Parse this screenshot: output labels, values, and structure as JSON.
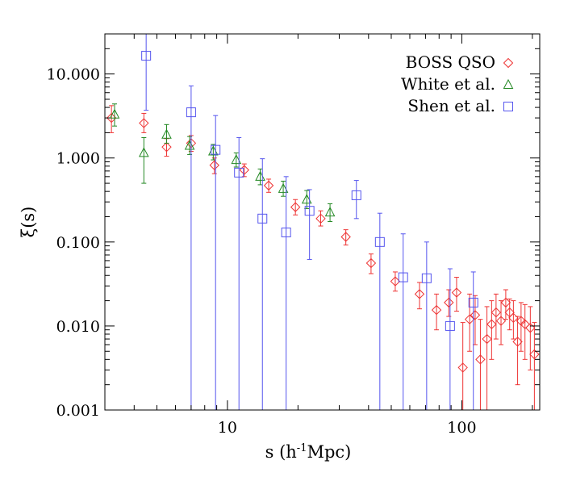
{
  "chart_data": {
    "type": "scatter",
    "xlabel": "s (h⁻¹Mpc)",
    "ylabel": "ξ(s)",
    "xscale": "log",
    "yscale": "log",
    "xlim": [
      3.0,
      215.0
    ],
    "ylim": [
      0.001,
      30.0
    ],
    "grid": false,
    "legend_position": "top-right",
    "x_ticks": [
      {
        "value": 10,
        "label": "10"
      },
      {
        "value": 100,
        "label": "100"
      }
    ],
    "y_ticks": [
      {
        "value": 0.001,
        "label": "0.001"
      },
      {
        "value": 0.01,
        "label": "0.010"
      },
      {
        "value": 0.1,
        "label": "0.100"
      },
      {
        "value": 1,
        "label": "1.000"
      },
      {
        "value": 10,
        "label": "10.000"
      }
    ],
    "series": [
      {
        "name": "BOSS QSO",
        "marker": "diamond",
        "color": "#ee3333",
        "points": [
          {
            "x": 3.2,
            "y": 3.0,
            "lo": 2.0,
            "hi": 4.2
          },
          {
            "x": 4.4,
            "y": 2.6,
            "lo": 2.0,
            "hi": 3.4
          },
          {
            "x": 5.5,
            "y": 1.35,
            "lo": 1.05,
            "hi": 1.7
          },
          {
            "x": 7.0,
            "y": 1.5,
            "lo": 1.2,
            "hi": 1.85
          },
          {
            "x": 8.8,
            "y": 0.82,
            "lo": 0.65,
            "hi": 1.0
          },
          {
            "x": 11.8,
            "y": 0.72,
            "lo": 0.6,
            "hi": 0.85
          },
          {
            "x": 15.0,
            "y": 0.47,
            "lo": 0.39,
            "hi": 0.56
          },
          {
            "x": 19.5,
            "y": 0.26,
            "lo": 0.21,
            "hi": 0.32
          },
          {
            "x": 25.0,
            "y": 0.19,
            "lo": 0.155,
            "hi": 0.235
          },
          {
            "x": 32.0,
            "y": 0.115,
            "lo": 0.092,
            "hi": 0.14
          },
          {
            "x": 41.0,
            "y": 0.056,
            "lo": 0.042,
            "hi": 0.072
          },
          {
            "x": 52.0,
            "y": 0.034,
            "lo": 0.026,
            "hi": 0.044
          },
          {
            "x": 66.0,
            "y": 0.024,
            "lo": 0.016,
            "hi": 0.033
          },
          {
            "x": 78.0,
            "y": 0.0155,
            "lo": 0.009,
            "hi": 0.024
          },
          {
            "x": 88.0,
            "y": 0.019,
            "lo": 0.013,
            "hi": 0.027
          },
          {
            "x": 95.0,
            "y": 0.025,
            "lo": 0.015,
            "hi": 0.038
          },
          {
            "x": 101.0,
            "y": 0.0032,
            "lo": 0.001,
            "hi": 0.011
          },
          {
            "x": 108.0,
            "y": 0.012,
            "lo": 0.005,
            "hi": 0.024
          },
          {
            "x": 114.0,
            "y": 0.0135,
            "lo": 0.006,
            "hi": 0.023
          },
          {
            "x": 120.0,
            "y": 0.004,
            "lo": 0.001,
            "hi": 0.012
          },
          {
            "x": 128.0,
            "y": 0.007,
            "lo": 0.001,
            "hi": 0.017
          },
          {
            "x": 134.0,
            "y": 0.0105,
            "lo": 0.004,
            "hi": 0.02
          },
          {
            "x": 140.0,
            "y": 0.0145,
            "lo": 0.007,
            "hi": 0.024
          },
          {
            "x": 147.0,
            "y": 0.0115,
            "lo": 0.006,
            "hi": 0.02
          },
          {
            "x": 154.0,
            "y": 0.019,
            "lo": 0.012,
            "hi": 0.027
          },
          {
            "x": 160.0,
            "y": 0.0145,
            "lo": 0.009,
            "hi": 0.021
          },
          {
            "x": 166.0,
            "y": 0.0125,
            "lo": 0.007,
            "hi": 0.02
          },
          {
            "x": 173.0,
            "y": 0.0065,
            "lo": 0.002,
            "hi": 0.013
          },
          {
            "x": 179.0,
            "y": 0.0115,
            "lo": 0.005,
            "hi": 0.019
          },
          {
            "x": 186.0,
            "y": 0.0105,
            "lo": 0.004,
            "hi": 0.018
          },
          {
            "x": 196.0,
            "y": 0.0095,
            "lo": 0.003,
            "hi": 0.017
          },
          {
            "x": 204.0,
            "y": 0.0046,
            "lo": 0.001,
            "hi": 0.011
          }
        ]
      },
      {
        "name": "White et al.",
        "marker": "triangle",
        "color": "#228822",
        "points": [
          {
            "x": 3.3,
            "y": 3.3,
            "lo": 2.4,
            "hi": 4.4
          },
          {
            "x": 4.4,
            "y": 1.15,
            "lo": 0.5,
            "hi": 1.75
          },
          {
            "x": 5.5,
            "y": 1.9,
            "lo": 1.5,
            "hi": 2.5
          },
          {
            "x": 6.9,
            "y": 1.4,
            "lo": 1.1,
            "hi": 1.8
          },
          {
            "x": 8.7,
            "y": 1.2,
            "lo": 0.95,
            "hi": 1.45
          },
          {
            "x": 10.9,
            "y": 0.95,
            "lo": 0.78,
            "hi": 1.15
          },
          {
            "x": 13.8,
            "y": 0.6,
            "lo": 0.48,
            "hi": 0.74
          },
          {
            "x": 17.3,
            "y": 0.43,
            "lo": 0.35,
            "hi": 0.53
          },
          {
            "x": 21.8,
            "y": 0.32,
            "lo": 0.25,
            "hi": 0.41
          },
          {
            "x": 27.4,
            "y": 0.225,
            "lo": 0.175,
            "hi": 0.285
          }
        ]
      },
      {
        "name": "Shen et al.",
        "marker": "square",
        "color": "#5555ee",
        "points": [
          {
            "x": 4.5,
            "y": 16.5,
            "lo": 3.7,
            "hi": 30.0
          },
          {
            "x": 7.0,
            "y": 3.5,
            "lo": 0.001,
            "hi": 7.2
          },
          {
            "x": 8.9,
            "y": 1.25,
            "lo": 0.001,
            "hi": 3.2
          },
          {
            "x": 11.2,
            "y": 0.67,
            "lo": 0.001,
            "hi": 1.75
          },
          {
            "x": 14.1,
            "y": 0.19,
            "lo": 0.001,
            "hi": 0.98
          },
          {
            "x": 17.8,
            "y": 0.13,
            "lo": 0.001,
            "hi": 0.6
          },
          {
            "x": 22.4,
            "y": 0.235,
            "lo": 0.062,
            "hi": 0.42
          },
          {
            "x": 35.5,
            "y": 0.36,
            "lo": 0.19,
            "hi": 0.54
          },
          {
            "x": 44.7,
            "y": 0.1,
            "lo": 0.001,
            "hi": 0.22
          },
          {
            "x": 56.2,
            "y": 0.038,
            "lo": 0.001,
            "hi": 0.125
          },
          {
            "x": 70.8,
            "y": 0.037,
            "lo": 0.001,
            "hi": 0.1
          },
          {
            "x": 89.1,
            "y": 0.01,
            "lo": 0.001,
            "hi": 0.048
          },
          {
            "x": 112.0,
            "y": 0.019,
            "lo": 0.001,
            "hi": 0.044
          }
        ]
      }
    ]
  }
}
